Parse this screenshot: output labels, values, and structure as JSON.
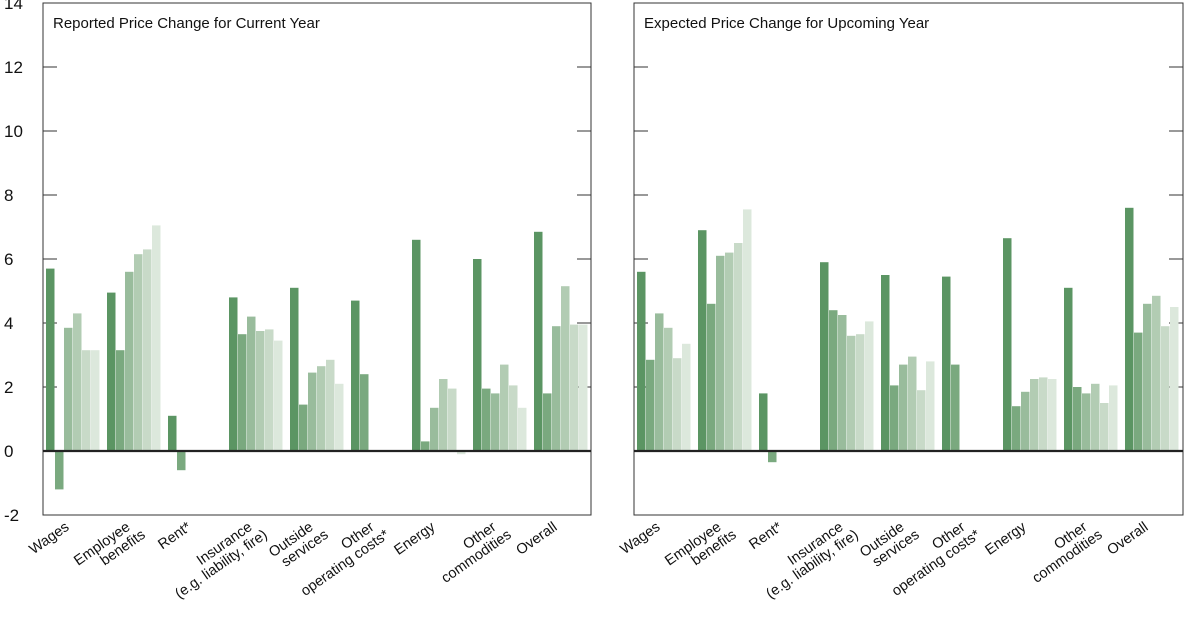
{
  "chart_data": {
    "type": "bar",
    "categories": [
      [
        "Wages"
      ],
      [
        "Employee",
        "benefits"
      ],
      [
        "Rent*"
      ],
      [
        "Insurance",
        "(e.g. liability, fire)"
      ],
      [
        "Outside",
        "services"
      ],
      [
        "Other",
        "operating costs*"
      ],
      [
        "Energy"
      ],
      [
        "Other",
        "commodities"
      ],
      [
        "Overall"
      ]
    ],
    "y_ticks": [
      "14",
      "12",
      "10",
      "8",
      "6",
      "4",
      "2",
      "0",
      "-2"
    ],
    "ylim": [
      -2,
      14
    ],
    "series_colors": [
      "#5b9563",
      "#7aa97f",
      "#99bc9c",
      "#b2ccb3",
      "#c8dac8",
      "#dce8dc"
    ],
    "grid": false,
    "legend": "none",
    "panels": [
      {
        "title": "Reported Price Change for Current Year",
        "groups": [
          [
            5.7,
            -1.2,
            3.85,
            4.3,
            3.15,
            3.15
          ],
          [
            4.95,
            3.15,
            5.6,
            6.15,
            6.3,
            7.05
          ],
          [
            1.1,
            -0.6
          ],
          [
            4.8,
            3.65,
            4.2,
            3.75,
            3.8,
            3.45
          ],
          [
            5.1,
            1.45,
            2.45,
            2.65,
            2.85,
            2.1
          ],
          [
            4.7,
            2.4
          ],
          [
            6.6,
            0.3,
            1.35,
            2.25,
            1.95,
            -0.1
          ],
          [
            6.0,
            1.95,
            1.8,
            2.7,
            2.05,
            1.35
          ],
          [
            6.85,
            1.8,
            3.9,
            5.15,
            3.95,
            3.95
          ]
        ]
      },
      {
        "title": "Expected Price Change for Upcoming Year",
        "groups": [
          [
            5.6,
            2.85,
            4.3,
            3.85,
            2.9,
            3.35
          ],
          [
            6.9,
            4.6,
            6.1,
            6.2,
            6.5,
            7.55
          ],
          [
            1.8,
            -0.35
          ],
          [
            5.9,
            4.4,
            4.25,
            3.6,
            3.65,
            4.05
          ],
          [
            5.5,
            2.05,
            2.7,
            2.95,
            1.9,
            2.8
          ],
          [
            5.45,
            2.7
          ],
          [
            6.65,
            1.4,
            1.85,
            2.25,
            2.3,
            2.25
          ],
          [
            5.1,
            2.0,
            1.8,
            2.1,
            1.5,
            2.05
          ],
          [
            7.6,
            3.7,
            4.6,
            4.85,
            3.9,
            4.5
          ]
        ]
      }
    ]
  }
}
